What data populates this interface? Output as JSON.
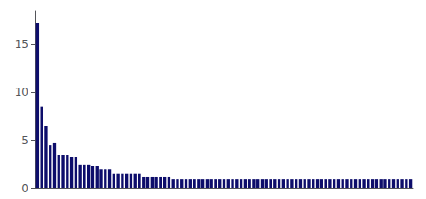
{
  "chart_data": {
    "type": "bar",
    "values": [
      17.2,
      8.5,
      6.5,
      4.5,
      4.7,
      3.5,
      3.5,
      3.5,
      3.3,
      3.3,
      2.5,
      2.5,
      2.5,
      2.3,
      2.3,
      2.0,
      2.0,
      2.0,
      1.5,
      1.5,
      1.5,
      1.5,
      1.5,
      1.5,
      1.5,
      1.2,
      1.2,
      1.2,
      1.2,
      1.2,
      1.2,
      1.2,
      1.0,
      1.0,
      1.0,
      1.0,
      1.0,
      1.0,
      1.0,
      1.0,
      1.0,
      1.0,
      1.0,
      1.0,
      1.0,
      1.0,
      1.0,
      1.0,
      1.0,
      1.0,
      1.0,
      1.0,
      1.0,
      1.0,
      1.0,
      1.0,
      1.0,
      1.0,
      1.0,
      1.0,
      1.0,
      1.0,
      1.0,
      1.0,
      1.0,
      1.0,
      1.0,
      1.0,
      1.0,
      1.0,
      1.0,
      1.0,
      1.0,
      1.0,
      1.0,
      1.0,
      1.0,
      1.0,
      1.0,
      1.0,
      1.0,
      1.0,
      1.0,
      1.0,
      1.0,
      1.0,
      1.0,
      1.0,
      1.0
    ],
    "color": "#0d0d6b",
    "ylim": [
      0,
      18.5
    ],
    "yticks": [
      0,
      5,
      10,
      15
    ],
    "grid": false,
    "tick_labels": "y"
  }
}
